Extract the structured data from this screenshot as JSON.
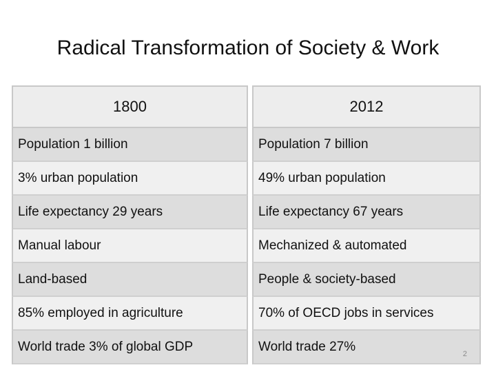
{
  "slide": {
    "title": "Radical Transformation of Society & Work",
    "page_number": "2"
  },
  "table": {
    "headers": [
      "1800",
      "2012"
    ],
    "rows": [
      [
        "Population 1 billion",
        "Population 7 billion"
      ],
      [
        "3% urban population",
        "49% urban population"
      ],
      [
        "Life expectancy 29 years",
        "Life expectancy 67 years"
      ],
      [
        "Manual labour",
        "Mechanized & automated"
      ],
      [
        "Land-based",
        "People & society-based"
      ],
      [
        "85% employed in agriculture",
        "70% of OECD jobs in services"
      ],
      [
        "World trade 3% of global GDP",
        "World trade 27%"
      ]
    ]
  },
  "colors": {
    "header_fill": "#ededed",
    "row_fill_dark": "#dddddd",
    "row_fill_light": "#f0f0f0",
    "border": "#c8c8c8"
  }
}
